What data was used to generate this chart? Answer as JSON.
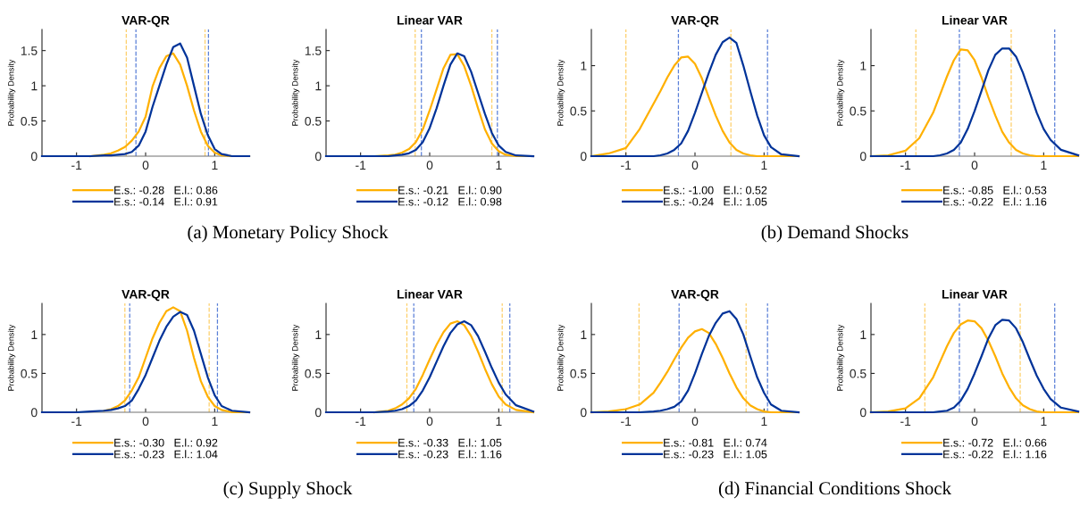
{
  "chart_data": [
    {
      "type": "line",
      "title": "VAR-QR",
      "ylabel": "Probability Density",
      "x": [
        -1.5,
        -1.25,
        -1,
        -0.8,
        -0.6,
        -0.5,
        -0.4,
        -0.3,
        -0.2,
        -0.1,
        0,
        0.1,
        0.2,
        0.3,
        0.4,
        0.5,
        0.6,
        0.7,
        0.8,
        0.9,
        1,
        1.1,
        1.25,
        1.5
      ],
      "xlim": [
        -1.5,
        1.5
      ],
      "xticks": [
        -1,
        0,
        1
      ],
      "ylim": [
        0,
        1.8
      ],
      "yticks": [
        0,
        0.5,
        1,
        1.5
      ],
      "grid": false,
      "legend": "bottom",
      "line_style": "solid",
      "series": [
        {
          "name": "E.s.: -0.28   E.l.: 0.86",
          "color": "#ffb000",
          "values": [
            null,
            null,
            null,
            0,
            0.02,
            0.04,
            0.08,
            0.13,
            0.22,
            0.35,
            0.56,
            0.99,
            1.25,
            1.42,
            1.46,
            1.3,
            1.0,
            0.65,
            0.35,
            0.15,
            0.05,
            0.01,
            0,
            0
          ]
        },
        {
          "name": "E.s.: -0.14   E.l.: 0.91",
          "color": "#003399",
          "values": [
            0,
            0,
            0,
            0,
            0.01,
            0.01,
            0.02,
            0.03,
            0.06,
            0.15,
            0.35,
            0.7,
            1.0,
            1.3,
            1.55,
            1.6,
            1.4,
            1.0,
            0.6,
            0.3,
            0.1,
            0.03,
            0,
            0
          ]
        }
      ],
      "ref_lines": [
        {
          "axis": "x",
          "value": -0.28,
          "color": "#fdcf6a",
          "line_style": "dashed"
        },
        {
          "axis": "x",
          "value": 0.86,
          "color": "#fdcf6a",
          "line_style": "dashed"
        },
        {
          "axis": "x",
          "value": -0.14,
          "color": "#5b80d8",
          "line_style": "dashed"
        },
        {
          "axis": "x",
          "value": 0.91,
          "color": "#5b80d8",
          "line_style": "dashed"
        }
      ],
      "annotations": [
        "(a) Monetary Policy Shock"
      ]
    },
    {
      "type": "line",
      "title": "Linear VAR",
      "ylabel": "Probability Density",
      "x": [
        -1.5,
        -1.25,
        -1,
        -0.8,
        -0.6,
        -0.5,
        -0.4,
        -0.3,
        -0.2,
        -0.1,
        0,
        0.1,
        0.2,
        0.3,
        0.4,
        0.5,
        0.6,
        0.7,
        0.8,
        0.9,
        1,
        1.1,
        1.25,
        1.5
      ],
      "xlim": [
        -1.5,
        1.5
      ],
      "xticks": [
        -1,
        0,
        1
      ],
      "ylim": [
        0,
        1.8
      ],
      "yticks": [
        0,
        0.5,
        1,
        1.5
      ],
      "grid": false,
      "legend": "bottom",
      "line_style": "solid",
      "series": [
        {
          "name": "E.s.: -0.21   E.l.: 0.90",
          "color": "#ffb000",
          "values": [
            null,
            null,
            0,
            0,
            0.01,
            0.02,
            0.05,
            0.1,
            0.2,
            0.38,
            0.65,
            0.95,
            1.25,
            1.44,
            1.45,
            1.28,
            1.0,
            0.68,
            0.38,
            0.18,
            0.07,
            0.02,
            0,
            0
          ]
        },
        {
          "name": "E.s.: -0.12   E.l.: 0.98",
          "color": "#003399",
          "values": [
            0,
            0,
            0,
            0,
            0,
            0.01,
            0.02,
            0.04,
            0.09,
            0.2,
            0.4,
            0.68,
            1.0,
            1.3,
            1.46,
            1.42,
            1.2,
            0.9,
            0.6,
            0.33,
            0.15,
            0.06,
            0.01,
            0
          ]
        }
      ],
      "ref_lines": [
        {
          "axis": "x",
          "value": -0.21,
          "color": "#fdcf6a",
          "line_style": "dashed"
        },
        {
          "axis": "x",
          "value": 0.9,
          "color": "#fdcf6a",
          "line_style": "dashed"
        },
        {
          "axis": "x",
          "value": -0.12,
          "color": "#5b80d8",
          "line_style": "dashed"
        },
        {
          "axis": "x",
          "value": 0.98,
          "color": "#5b80d8",
          "line_style": "dashed"
        }
      ]
    },
    {
      "type": "line",
      "title": "VAR-QR",
      "ylabel": "Probability Density",
      "x": [
        -1.5,
        -1.25,
        -1,
        -0.8,
        -0.6,
        -0.5,
        -0.4,
        -0.3,
        -0.2,
        -0.1,
        0,
        0.1,
        0.2,
        0.3,
        0.4,
        0.5,
        0.6,
        0.7,
        0.8,
        0.9,
        1,
        1.1,
        1.25,
        1.5
      ],
      "xlim": [
        -1.5,
        1.5
      ],
      "xticks": [
        -1,
        0,
        1
      ],
      "ylim": [
        0,
        1.4
      ],
      "yticks": [
        0,
        0.5,
        1
      ],
      "grid": false,
      "legend": "bottom",
      "line_style": "solid",
      "series": [
        {
          "name": "E.s.: -1.00   E.l.: 0.52",
          "color": "#ffb000",
          "values": [
            0,
            0.03,
            0.09,
            0.3,
            0.58,
            0.72,
            0.87,
            1.0,
            1.09,
            1.1,
            1.02,
            0.86,
            0.65,
            0.45,
            0.28,
            0.15,
            0.07,
            0.03,
            0.01,
            0,
            0,
            0,
            0,
            0
          ]
        },
        {
          "name": "E.s.: -0.24   E.l.: 1.05",
          "color": "#003399",
          "values": [
            0,
            0,
            0,
            0,
            0,
            0.01,
            0.03,
            0.07,
            0.14,
            0.28,
            0.48,
            0.7,
            0.92,
            1.12,
            1.26,
            1.31,
            1.25,
            1.0,
            0.72,
            0.45,
            0.23,
            0.1,
            0.02,
            0
          ]
        }
      ],
      "ref_lines": [
        {
          "axis": "x",
          "value": -1.0,
          "color": "#fdcf6a",
          "line_style": "dashed"
        },
        {
          "axis": "x",
          "value": 0.52,
          "color": "#fdcf6a",
          "line_style": "dashed"
        },
        {
          "axis": "x",
          "value": -0.24,
          "color": "#5b80d8",
          "line_style": "dashed"
        },
        {
          "axis": "x",
          "value": 1.05,
          "color": "#5b80d8",
          "line_style": "dashed"
        }
      ],
      "annotations": [
        "(b) Demand Shocks"
      ]
    },
    {
      "type": "line",
      "title": "Linear VAR",
      "ylabel": "Probability Density",
      "x": [
        -1.5,
        -1.25,
        -1,
        -0.8,
        -0.6,
        -0.5,
        -0.4,
        -0.3,
        -0.2,
        -0.1,
        0,
        0.1,
        0.2,
        0.3,
        0.4,
        0.5,
        0.6,
        0.7,
        0.8,
        0.9,
        1,
        1.1,
        1.25,
        1.5
      ],
      "xlim": [
        -1.5,
        1.5
      ],
      "xticks": [
        -1,
        0,
        1
      ],
      "ylim": [
        0,
        1.4
      ],
      "yticks": [
        0,
        0.5,
        1
      ],
      "grid": false,
      "legend": "bottom",
      "line_style": "solid",
      "series": [
        {
          "name": "E.s.: -0.85   E.l.: 0.53",
          "color": "#ffb000",
          "values": [
            0,
            0.01,
            0.06,
            0.2,
            0.48,
            0.68,
            0.88,
            1.06,
            1.18,
            1.17,
            1.06,
            0.87,
            0.65,
            0.45,
            0.27,
            0.15,
            0.07,
            0.03,
            0.01,
            0,
            0,
            0,
            0,
            0
          ]
        },
        {
          "name": "E.s.: -0.22   E.l.: 1.16",
          "color": "#003399",
          "values": [
            0,
            0,
            0,
            0,
            0,
            0.01,
            0.03,
            0.07,
            0.15,
            0.3,
            0.5,
            0.72,
            0.95,
            1.12,
            1.19,
            1.19,
            1.1,
            0.92,
            0.7,
            0.48,
            0.3,
            0.18,
            0.07,
            0.01
          ]
        }
      ],
      "ref_lines": [
        {
          "axis": "x",
          "value": -0.85,
          "color": "#fdcf6a",
          "line_style": "dashed"
        },
        {
          "axis": "x",
          "value": 0.53,
          "color": "#fdcf6a",
          "line_style": "dashed"
        },
        {
          "axis": "x",
          "value": -0.22,
          "color": "#5b80d8",
          "line_style": "dashed"
        },
        {
          "axis": "x",
          "value": 1.16,
          "color": "#5b80d8",
          "line_style": "dashed"
        }
      ]
    },
    {
      "type": "line",
      "title": "VAR-QR",
      "ylabel": "Probability Density",
      "x": [
        -1.5,
        -1.25,
        -1,
        -0.8,
        -0.6,
        -0.5,
        -0.4,
        -0.3,
        -0.2,
        -0.1,
        0,
        0.1,
        0.2,
        0.3,
        0.4,
        0.5,
        0.6,
        0.7,
        0.8,
        0.9,
        1,
        1.1,
        1.25,
        1.5
      ],
      "xlim": [
        -1.5,
        1.5
      ],
      "xticks": [
        -1,
        0,
        1
      ],
      "ylim": [
        0,
        1.4
      ],
      "yticks": [
        0,
        0.5,
        1
      ],
      "grid": false,
      "legend": "bottom",
      "line_style": "solid",
      "series": [
        {
          "name": "E.s.: -0.30   E.l.: 0.92",
          "color": "#ffb000",
          "values": [
            null,
            null,
            null,
            null,
            0.02,
            0.04,
            0.08,
            0.15,
            0.28,
            0.45,
            0.7,
            0.95,
            1.15,
            1.3,
            1.35,
            1.3,
            1.05,
            0.7,
            0.4,
            0.2,
            0.08,
            0.03,
            0,
            0
          ]
        },
        {
          "name": "E.s.: -0.23   E.l.: 1.04",
          "color": "#003399",
          "values": [
            0,
            0,
            0,
            0.01,
            0.02,
            0.03,
            0.05,
            0.08,
            0.15,
            0.3,
            0.48,
            0.7,
            0.92,
            1.1,
            1.23,
            1.29,
            1.25,
            1.05,
            0.75,
            0.45,
            0.22,
            0.08,
            0.02,
            0
          ]
        }
      ],
      "ref_lines": [
        {
          "axis": "x",
          "value": -0.3,
          "color": "#fdcf6a",
          "line_style": "dashed"
        },
        {
          "axis": "x",
          "value": 0.92,
          "color": "#fdcf6a",
          "line_style": "dashed"
        },
        {
          "axis": "x",
          "value": -0.23,
          "color": "#5b80d8",
          "line_style": "dashed"
        },
        {
          "axis": "x",
          "value": 1.04,
          "color": "#5b80d8",
          "line_style": "dashed"
        }
      ],
      "annotations": [
        "(c) Supply Shock"
      ]
    },
    {
      "type": "line",
      "title": "Linear VAR",
      "ylabel": "Probability Density",
      "x": [
        -1.5,
        -1.25,
        -1,
        -0.8,
        -0.6,
        -0.5,
        -0.4,
        -0.3,
        -0.2,
        -0.1,
        0,
        0.1,
        0.2,
        0.3,
        0.4,
        0.5,
        0.6,
        0.7,
        0.8,
        0.9,
        1,
        1.1,
        1.25,
        1.5
      ],
      "xlim": [
        -1.5,
        1.5
      ],
      "xticks": [
        -1,
        0,
        1
      ],
      "ylim": [
        0,
        1.4
      ],
      "yticks": [
        0,
        0.5,
        1
      ],
      "grid": false,
      "legend": "bottom",
      "line_style": "solid",
      "series": [
        {
          "name": "E.s.: -0.33   E.l.: 1.05",
          "color": "#ffb000",
          "values": [
            null,
            null,
            null,
            0,
            0.02,
            0.05,
            0.1,
            0.18,
            0.3,
            0.48,
            0.68,
            0.87,
            1.03,
            1.14,
            1.17,
            1.12,
            0.98,
            0.78,
            0.56,
            0.36,
            0.2,
            0.1,
            0.03,
            0
          ]
        },
        {
          "name": "E.s.: -0.23   E.l.: 1.16",
          "color": "#003399",
          "values": [
            0,
            0,
            0,
            0,
            0.01,
            0.02,
            0.04,
            0.08,
            0.15,
            0.28,
            0.45,
            0.65,
            0.85,
            1.02,
            1.13,
            1.17,
            1.12,
            0.98,
            0.78,
            0.57,
            0.38,
            0.23,
            0.09,
            0.01
          ]
        }
      ],
      "ref_lines": [
        {
          "axis": "x",
          "value": -0.33,
          "color": "#fdcf6a",
          "line_style": "dashed"
        },
        {
          "axis": "x",
          "value": 1.05,
          "color": "#fdcf6a",
          "line_style": "dashed"
        },
        {
          "axis": "x",
          "value": -0.23,
          "color": "#5b80d8",
          "line_style": "dashed"
        },
        {
          "axis": "x",
          "value": 1.16,
          "color": "#5b80d8",
          "line_style": "dashed"
        }
      ]
    },
    {
      "type": "line",
      "title": "VAR-QR",
      "ylabel": "Probability Density",
      "x": [
        -1.5,
        -1.25,
        -1,
        -0.8,
        -0.6,
        -0.5,
        -0.4,
        -0.3,
        -0.2,
        -0.1,
        0,
        0.1,
        0.2,
        0.3,
        0.4,
        0.5,
        0.6,
        0.7,
        0.8,
        0.9,
        1,
        1.1,
        1.25,
        1.5
      ],
      "xlim": [
        -1.5,
        1.5
      ],
      "xticks": [
        -1,
        0,
        1
      ],
      "ylim": [
        0,
        1.4
      ],
      "yticks": [
        0,
        0.5,
        1
      ],
      "grid": false,
      "legend": "bottom",
      "line_style": "solid",
      "series": [
        {
          "name": "E.s.: -0.81   E.l.: 0.74",
          "color": "#ffb000",
          "values": [
            0,
            0.01,
            0.04,
            0.1,
            0.25,
            0.38,
            0.52,
            0.68,
            0.83,
            0.96,
            1.04,
            1.07,
            1.02,
            0.88,
            0.7,
            0.5,
            0.32,
            0.18,
            0.09,
            0.04,
            0.01,
            0,
            0,
            0
          ]
        },
        {
          "name": "E.s.: -0.23   E.l.: 1.05",
          "color": "#003399",
          "values": [
            0,
            0,
            0,
            0,
            0.01,
            0.02,
            0.04,
            0.07,
            0.14,
            0.28,
            0.5,
            0.75,
            0.98,
            1.15,
            1.27,
            1.3,
            1.2,
            1.0,
            0.72,
            0.45,
            0.25,
            0.1,
            0.02,
            0
          ]
        }
      ],
      "ref_lines": [
        {
          "axis": "x",
          "value": -0.81,
          "color": "#fdcf6a",
          "line_style": "dashed"
        },
        {
          "axis": "x",
          "value": 0.74,
          "color": "#fdcf6a",
          "line_style": "dashed"
        },
        {
          "axis": "x",
          "value": -0.23,
          "color": "#5b80d8",
          "line_style": "dashed"
        },
        {
          "axis": "x",
          "value": 1.05,
          "color": "#5b80d8",
          "line_style": "dashed"
        }
      ],
      "annotations": [
        "(d) Financial Conditions Shock"
      ]
    },
    {
      "type": "line",
      "title": "Linear VAR",
      "ylabel": "Probability Density",
      "x": [
        -1.5,
        -1.25,
        -1,
        -0.8,
        -0.6,
        -0.5,
        -0.4,
        -0.3,
        -0.2,
        -0.1,
        0,
        0.1,
        0.2,
        0.3,
        0.4,
        0.5,
        0.6,
        0.7,
        0.8,
        0.9,
        1,
        1.1,
        1.25,
        1.5
      ],
      "xlim": [
        -1.5,
        1.5
      ],
      "xticks": [
        -1,
        0,
        1
      ],
      "ylim": [
        0,
        1.4
      ],
      "yticks": [
        0,
        0.5,
        1
      ],
      "grid": false,
      "legend": "bottom",
      "line_style": "solid",
      "series": [
        {
          "name": "E.s.: -0.72   E.l.: 0.66",
          "color": "#ffb000",
          "values": [
            0,
            0.01,
            0.05,
            0.18,
            0.45,
            0.65,
            0.85,
            1.02,
            1.13,
            1.18,
            1.17,
            1.08,
            0.92,
            0.72,
            0.5,
            0.32,
            0.18,
            0.09,
            0.04,
            0.01,
            0,
            0,
            0,
            0
          ]
        },
        {
          "name": "E.s.: -0.22   E.l.: 1.16",
          "color": "#003399",
          "values": [
            0,
            0,
            0,
            0,
            0,
            0.01,
            0.02,
            0.06,
            0.15,
            0.3,
            0.5,
            0.72,
            0.95,
            1.12,
            1.19,
            1.18,
            1.08,
            0.9,
            0.68,
            0.47,
            0.3,
            0.17,
            0.06,
            0.01
          ]
        }
      ],
      "ref_lines": [
        {
          "axis": "x",
          "value": -0.72,
          "color": "#fdcf6a",
          "line_style": "dashed"
        },
        {
          "axis": "x",
          "value": 0.66,
          "color": "#fdcf6a",
          "line_style": "dashed"
        },
        {
          "axis": "x",
          "value": -0.22,
          "color": "#5b80d8",
          "line_style": "dashed"
        },
        {
          "axis": "x",
          "value": 1.16,
          "color": "#5b80d8",
          "line_style": "dashed"
        }
      ]
    }
  ]
}
